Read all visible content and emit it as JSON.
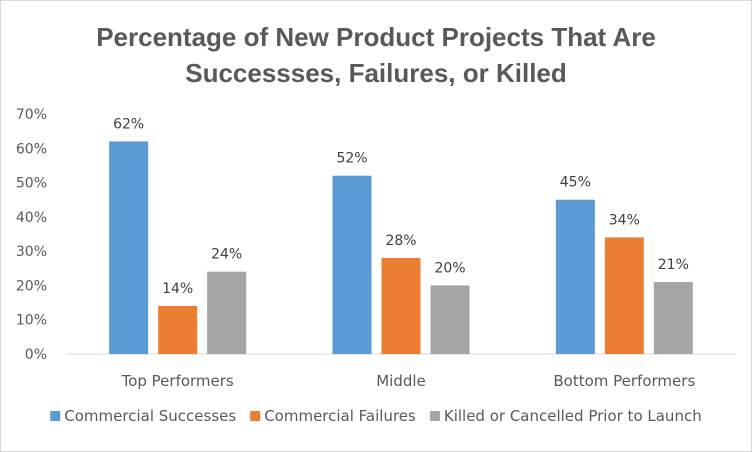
{
  "chart_data": {
    "type": "bar",
    "title_lines": [
      "Percentage of New Product Projects That Are",
      "Successses, Failures, or Killed"
    ],
    "categories": [
      "Top Performers",
      "Middle",
      "Bottom Performers"
    ],
    "series": [
      {
        "name": "Commercial Successes",
        "color": "#5b9bd5",
        "values": [
          62,
          52,
          45
        ]
      },
      {
        "name": "Commercial Failures",
        "color": "#ed7d31",
        "values": [
          14,
          28,
          34
        ]
      },
      {
        "name": "Killed or Cancelled Prior to Launch",
        "color": "#a5a5a5",
        "values": [
          24,
          20,
          21
        ]
      }
    ],
    "ylim": [
      0,
      70
    ],
    "yticks": [
      0,
      10,
      20,
      30,
      40,
      50,
      60,
      70
    ],
    "ytick_labels": [
      "0%",
      "10%",
      "20%",
      "30%",
      "40%",
      "50%",
      "60%",
      "70%"
    ],
    "data_labels": [
      [
        "62%",
        "52%",
        "45%"
      ],
      [
        "14%",
        "28%",
        "34%"
      ],
      [
        "24%",
        "20%",
        "21%"
      ]
    ],
    "grid": false,
    "legend_position": "bottom"
  }
}
